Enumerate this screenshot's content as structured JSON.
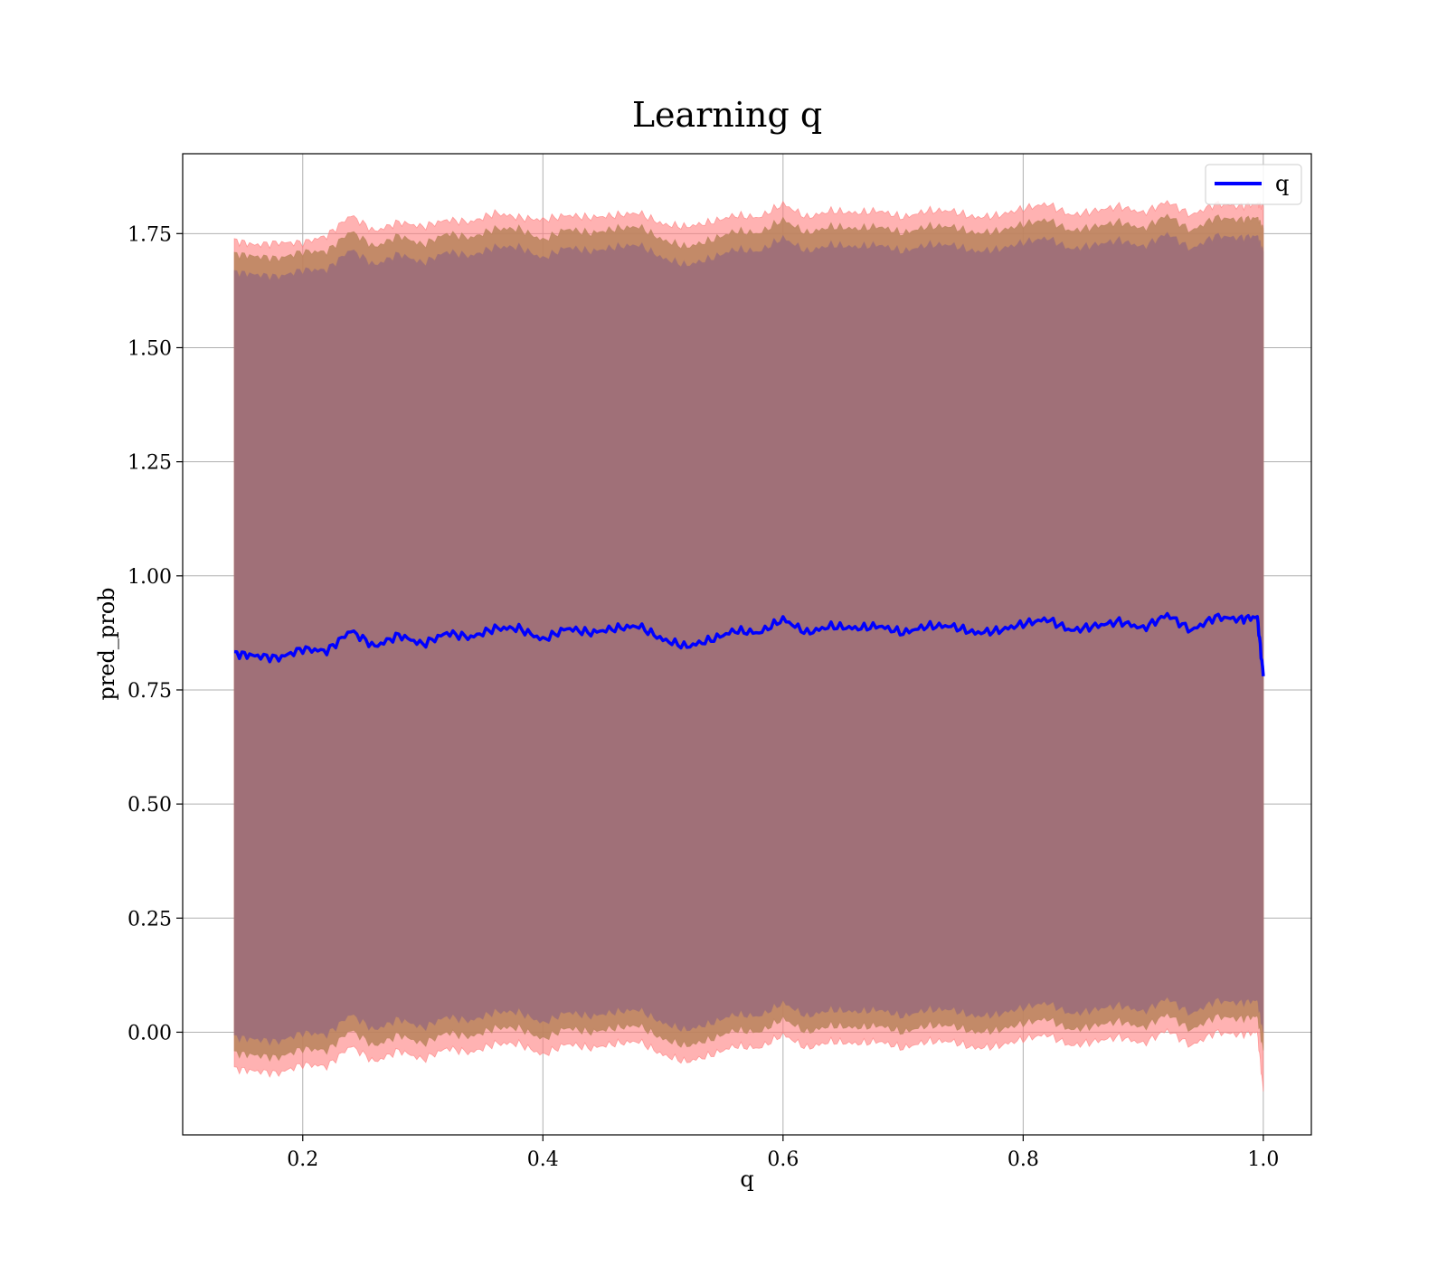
{
  "chart_data": {
    "type": "line",
    "title": "Learning q",
    "xlabel": "q",
    "ylabel": "pred_prob",
    "xlim": [
      0.1,
      1.04
    ],
    "ylim": [
      -0.225,
      1.925
    ],
    "x_ticks": [
      0.2,
      0.4,
      0.6,
      0.8,
      1.0
    ],
    "x_tick_labels": [
      "0.2",
      "0.4",
      "0.6",
      "0.8",
      "1.0"
    ],
    "y_ticks": [
      0.0,
      0.25,
      0.5,
      0.75,
      1.0,
      1.25,
      1.5,
      1.75
    ],
    "y_tick_labels": [
      "0.00",
      "0.25",
      "0.50",
      "0.75",
      "1.00",
      "1.25",
      "1.50",
      "1.75"
    ],
    "grid": true,
    "legend": {
      "placement": "top-right",
      "entries": [
        "q"
      ]
    },
    "colors": {
      "line": "#0000ff",
      "band_outer": "#ff7f7f",
      "band_middle": "#b8835a",
      "band_inner": "#a07078"
    },
    "series": [
      {
        "name": "q",
        "x": [
          0.143,
          0.16,
          0.18,
          0.2,
          0.22,
          0.24,
          0.26,
          0.28,
          0.3,
          0.32,
          0.34,
          0.36,
          0.38,
          0.4,
          0.42,
          0.44,
          0.46,
          0.48,
          0.5,
          0.52,
          0.54,
          0.56,
          0.58,
          0.6,
          0.62,
          0.64,
          0.66,
          0.68,
          0.7,
          0.72,
          0.74,
          0.76,
          0.78,
          0.8,
          0.82,
          0.84,
          0.86,
          0.88,
          0.9,
          0.92,
          0.94,
          0.96,
          0.98,
          0.995,
          1.0
        ],
        "y": [
          0.83,
          0.825,
          0.82,
          0.84,
          0.835,
          0.88,
          0.845,
          0.87,
          0.85,
          0.875,
          0.865,
          0.885,
          0.885,
          0.86,
          0.885,
          0.875,
          0.885,
          0.89,
          0.86,
          0.845,
          0.86,
          0.88,
          0.875,
          0.905,
          0.875,
          0.89,
          0.885,
          0.89,
          0.875,
          0.89,
          0.89,
          0.875,
          0.88,
          0.895,
          0.905,
          0.88,
          0.89,
          0.9,
          0.885,
          0.915,
          0.88,
          0.91,
          0.905,
          0.91,
          0.78
        ]
      }
    ],
    "bands": [
      {
        "role": "outer",
        "upper": [
          1.735,
          1.725,
          1.73,
          1.73,
          1.745,
          1.79,
          1.755,
          1.775,
          1.765,
          1.78,
          1.775,
          1.795,
          1.785,
          1.78,
          1.79,
          1.785,
          1.79,
          1.795,
          1.77,
          1.765,
          1.775,
          1.79,
          1.785,
          1.815,
          1.785,
          1.8,
          1.795,
          1.8,
          1.785,
          1.8,
          1.8,
          1.785,
          1.79,
          1.805,
          1.815,
          1.79,
          1.8,
          1.81,
          1.795,
          1.82,
          1.79,
          1.815,
          1.81,
          1.815,
          1.81
        ],
        "lower": [
          -0.08,
          -0.085,
          -0.09,
          -0.07,
          -0.075,
          -0.03,
          -0.065,
          -0.04,
          -0.06,
          -0.035,
          -0.045,
          -0.025,
          -0.025,
          -0.05,
          -0.025,
          -0.035,
          -0.025,
          -0.02,
          -0.05,
          -0.065,
          -0.05,
          -0.03,
          -0.035,
          -0.005,
          -0.035,
          -0.02,
          -0.025,
          -0.02,
          -0.035,
          -0.02,
          -0.02,
          -0.035,
          -0.03,
          -0.015,
          -0.005,
          -0.03,
          -0.02,
          -0.01,
          -0.025,
          0.005,
          -0.03,
          0.0,
          -0.005,
          0.0,
          -0.13
        ]
      },
      {
        "role": "middle",
        "upper": [
          1.705,
          1.7,
          1.695,
          1.71,
          1.71,
          1.755,
          1.72,
          1.745,
          1.725,
          1.75,
          1.74,
          1.76,
          1.76,
          1.735,
          1.76,
          1.75,
          1.76,
          1.765,
          1.735,
          1.72,
          1.735,
          1.755,
          1.75,
          1.78,
          1.75,
          1.765,
          1.76,
          1.765,
          1.75,
          1.765,
          1.765,
          1.75,
          1.755,
          1.77,
          1.78,
          1.755,
          1.765,
          1.775,
          1.76,
          1.79,
          1.755,
          1.785,
          1.78,
          1.785,
          1.76
        ],
        "lower": [
          -0.045,
          -0.05,
          -0.055,
          -0.035,
          -0.04,
          0.005,
          -0.03,
          -0.005,
          -0.025,
          0.0,
          -0.01,
          0.01,
          0.01,
          -0.015,
          0.01,
          0.0,
          0.01,
          0.015,
          -0.015,
          -0.03,
          -0.015,
          0.005,
          0.0,
          0.03,
          0.0,
          0.015,
          0.01,
          0.015,
          0.0,
          0.015,
          0.015,
          0.0,
          0.005,
          0.02,
          0.03,
          0.005,
          0.015,
          0.025,
          0.01,
          0.04,
          0.005,
          0.035,
          0.03,
          0.035,
          -0.04
        ]
      },
      {
        "role": "inner",
        "upper": [
          1.665,
          1.66,
          1.655,
          1.67,
          1.67,
          1.715,
          1.68,
          1.705,
          1.685,
          1.71,
          1.7,
          1.72,
          1.72,
          1.695,
          1.72,
          1.71,
          1.72,
          1.725,
          1.695,
          1.68,
          1.695,
          1.715,
          1.71,
          1.74,
          1.71,
          1.725,
          1.72,
          1.725,
          1.71,
          1.725,
          1.725,
          1.71,
          1.715,
          1.73,
          1.74,
          1.715,
          1.725,
          1.735,
          1.72,
          1.75,
          1.715,
          1.745,
          1.74,
          1.745,
          1.71
        ],
        "lower": [
          -0.01,
          -0.015,
          -0.02,
          0.0,
          -0.005,
          0.04,
          0.005,
          0.03,
          0.01,
          0.035,
          0.025,
          0.045,
          0.045,
          0.02,
          0.045,
          0.035,
          0.045,
          0.05,
          0.02,
          0.005,
          0.02,
          0.04,
          0.035,
          0.065,
          0.035,
          0.05,
          0.045,
          0.05,
          0.035,
          0.05,
          0.05,
          0.035,
          0.04,
          0.055,
          0.065,
          0.04,
          0.05,
          0.06,
          0.045,
          0.075,
          0.04,
          0.07,
          0.065,
          0.07,
          0.0
        ]
      }
    ]
  }
}
